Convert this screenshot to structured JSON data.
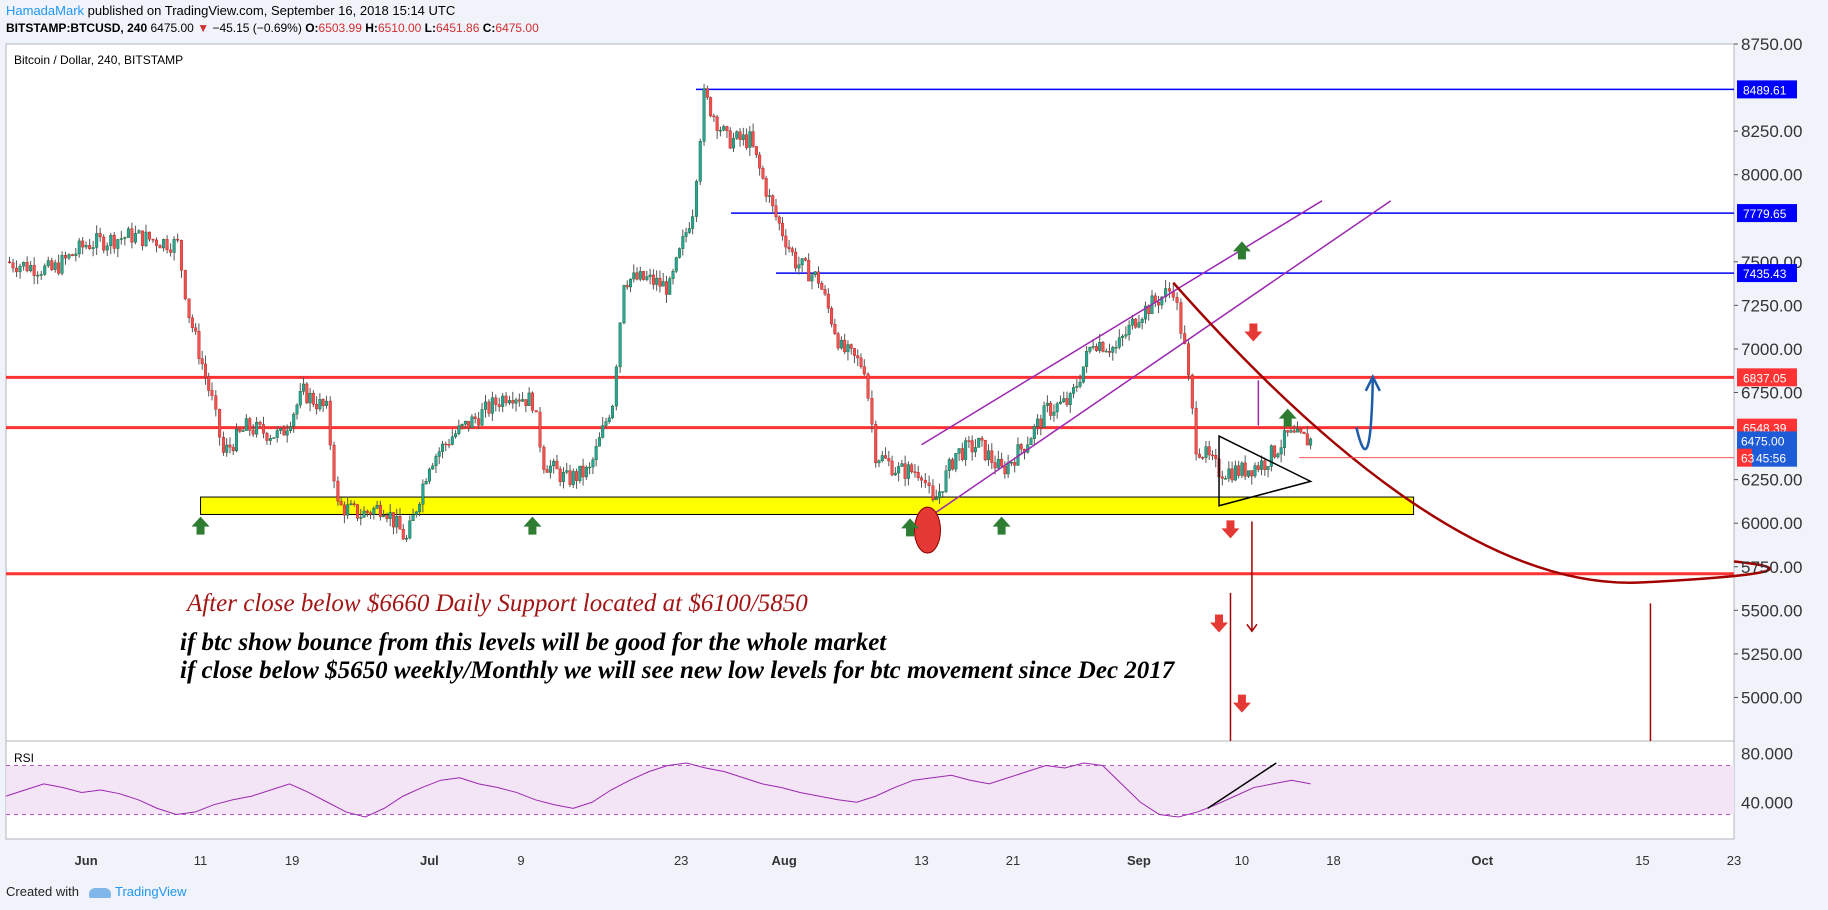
{
  "header": {
    "author": "HamadaMark",
    "published": " published on TradingView.com, September 16, 2018 15:14 UTC",
    "symbol": "BITSTAMP:BTCUSD, 240",
    "last": "6475.00",
    "change_arrow": "▼",
    "change": "−45.15 (−0.69%)",
    "open_label": "O:",
    "open": "6503.99",
    "high_label": "H:",
    "high": "6510.00",
    "low_label": "L:",
    "low": "6451.86",
    "close_label": "C:",
    "close": "6475.00"
  },
  "chart_title": "Bitcoin / Dollar, 240, BITSTAMP",
  "rsi_label": "RSI",
  "notes": {
    "line1": "After close below $6660 Daily Support located at $6100/5850",
    "line2": "if btc show bounce from this levels will be good for the whole market",
    "line3": "if close below $5650 weekly/Monthly we will see new low levels for btc movement since Dec 2017"
  },
  "footer": {
    "created_with": "Created with",
    "brand": "TradingView"
  },
  "colors": {
    "up": "#26a69a",
    "down": "#ef5350",
    "hline_blue": "#0000ff",
    "hline_red": "#ff3333",
    "support_zone": "#ffff00",
    "channel": "#9c27b0",
    "curve": "#a30000",
    "rsi": "#9c27b0"
  },
  "chart_data": {
    "type": "candlestick",
    "title": "Bitcoin / Dollar, 240, BITSTAMP",
    "y_axis": {
      "range": [
        4750,
        8750
      ],
      "ticks": [
        "8750.00",
        "8250.00",
        "8000.00",
        "7500.00",
        "7250.00",
        "7000.00",
        "6750.00",
        "6250.00",
        "6000.00",
        "5750.00",
        "5500.00",
        "5250.00",
        "5000.00"
      ]
    },
    "x_axis": {
      "ticks": [
        "Jun",
        "11",
        "19",
        "Jul",
        "9",
        "23",
        "Aug",
        "13",
        "21",
        "Sep",
        "10",
        "18",
        "Oct",
        "15",
        "23"
      ],
      "range": [
        "2018-05-25",
        "2018-10-23"
      ]
    },
    "price_path": [
      [
        "2018-05-25",
        7500
      ],
      [
        "2018-05-29",
        7450
      ],
      [
        "2018-06-01",
        7600
      ],
      [
        "2018-06-05",
        7650
      ],
      [
        "2018-06-09",
        7600
      ],
      [
        "2018-06-10",
        7200
      ],
      [
        "2018-06-12",
        6700
      ],
      [
        "2018-06-13",
        6400
      ],
      [
        "2018-06-15",
        6550
      ],
      [
        "2018-06-18",
        6500
      ],
      [
        "2018-06-20",
        6750
      ],
      [
        "2018-06-22",
        6650
      ],
      [
        "2018-06-23",
        6100
      ],
      [
        "2018-06-25",
        6050
      ],
      [
        "2018-06-27",
        6100
      ],
      [
        "2018-06-29",
        5900
      ],
      [
        "2018-07-01",
        6350
      ],
      [
        "2018-07-03",
        6500
      ],
      [
        "2018-07-05",
        6600
      ],
      [
        "2018-07-08",
        6750
      ],
      [
        "2018-07-10",
        6700
      ],
      [
        "2018-07-11",
        6350
      ],
      [
        "2018-07-13",
        6250
      ],
      [
        "2018-07-15",
        6300
      ],
      [
        "2018-07-17",
        6700
      ],
      [
        "2018-07-18",
        7400
      ],
      [
        "2018-07-20",
        7400
      ],
      [
        "2018-07-22",
        7350
      ],
      [
        "2018-07-24",
        7800
      ],
      [
        "2018-07-25",
        8450
      ],
      [
        "2018-07-27",
        8200
      ],
      [
        "2018-07-29",
        8200
      ],
      [
        "2018-07-31",
        7800
      ],
      [
        "2018-08-02",
        7500
      ],
      [
        "2018-08-04",
        7400
      ],
      [
        "2018-08-06",
        7000
      ],
      [
        "2018-08-08",
        6900
      ],
      [
        "2018-08-09",
        6400
      ],
      [
        "2018-08-11",
        6300
      ],
      [
        "2018-08-13",
        6300
      ],
      [
        "2018-08-14",
        6100
      ],
      [
        "2018-08-16",
        6400
      ],
      [
        "2018-08-18",
        6450
      ],
      [
        "2018-08-20",
        6300
      ],
      [
        "2018-08-22",
        6450
      ],
      [
        "2018-08-24",
        6650
      ],
      [
        "2018-08-26",
        6700
      ],
      [
        "2018-08-28",
        7050
      ],
      [
        "2018-08-30",
        7000
      ],
      [
        "2018-09-01",
        7200
      ],
      [
        "2018-09-03",
        7300
      ],
      [
        "2018-09-04",
        7350
      ],
      [
        "2018-09-05",
        7000
      ],
      [
        "2018-09-06",
        6450
      ],
      [
        "2018-09-08",
        6300
      ],
      [
        "2018-09-10",
        6300
      ],
      [
        "2018-09-12",
        6350
      ],
      [
        "2018-09-14",
        6500
      ],
      [
        "2018-09-16",
        6475
      ]
    ],
    "horizontal_levels": [
      {
        "value": 8489.61,
        "color": "blue",
        "label": "8489.61"
      },
      {
        "value": 7779.65,
        "color": "blue",
        "label": "7779.65"
      },
      {
        "value": 7435.43,
        "color": "blue",
        "label": "7435.43"
      },
      {
        "value": 6837.05,
        "color": "red",
        "label": "6837.05"
      },
      {
        "value": 6548.39,
        "color": "red",
        "label": "6548.39"
      },
      {
        "value": 5710,
        "color": "red",
        "label": ""
      }
    ],
    "price_labels": [
      {
        "value": 6475.0,
        "label": "6475.00"
      },
      {
        "value": 6376,
        "label": "45:56"
      },
      {
        "value": 6376,
        "label": "63"
      }
    ],
    "support_zone": {
      "from": "2018-06-11",
      "to": "2018-09-25",
      "low": 6050,
      "high": 6150
    },
    "rsi": {
      "levels": [
        70,
        30
      ],
      "ticks": [
        "80.000",
        "40.000"
      ],
      "range": [
        10,
        90
      ],
      "values": [
        45,
        50,
        55,
        52,
        48,
        50,
        47,
        42,
        35,
        30,
        32,
        38,
        42,
        45,
        50,
        55,
        48,
        40,
        32,
        28,
        35,
        45,
        52,
        58,
        60,
        55,
        52,
        48,
        42,
        38,
        35,
        40,
        50,
        58,
        65,
        70,
        72,
        68,
        65,
        60,
        55,
        52,
        48,
        45,
        42,
        40,
        45,
        52,
        58,
        60,
        62,
        58,
        55,
        60,
        65,
        70,
        68,
        72,
        70,
        55,
        40,
        30,
        28,
        32,
        38,
        45,
        52,
        55,
        58,
        55
      ]
    }
  }
}
